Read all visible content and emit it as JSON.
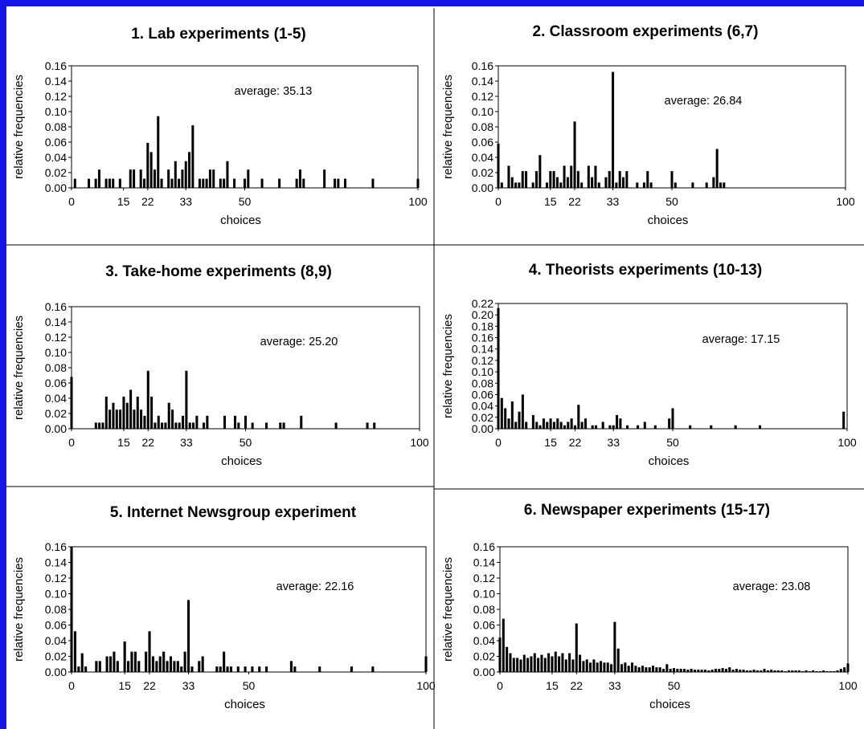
{
  "colors": {
    "frame": "#1414e6",
    "bars": "#000000",
    "background": "#ffffff"
  },
  "chart_data": [
    {
      "type": "bar",
      "title": "1. Lab experiments (1-5)",
      "xlabel": "choices",
      "ylabel": "relative frequencies",
      "average_label": "average: 35.13",
      "xlim": [
        0,
        100
      ],
      "ylim": [
        0,
        0.16
      ],
      "xticks": [
        0,
        15,
        22,
        33,
        50,
        100
      ],
      "yticks": [
        "0.00",
        "0.02",
        "0.04",
        "0.06",
        "0.08",
        "0.10",
        "0.12",
        "0.14",
        "0.16"
      ],
      "x": [
        1,
        5,
        7,
        8,
        10,
        11,
        12,
        14,
        17,
        18,
        20,
        21,
        22,
        23,
        24,
        25,
        26,
        28,
        29,
        30,
        31,
        32,
        33,
        34,
        35,
        37,
        38,
        39,
        40,
        41,
        43,
        44,
        45,
        47,
        50,
        51,
        55,
        60,
        65,
        66,
        67,
        73,
        76,
        77,
        79,
        87,
        100
      ],
      "values": [
        0.012,
        0.012,
        0.012,
        0.024,
        0.012,
        0.012,
        0.012,
        0.012,
        0.024,
        0.024,
        0.024,
        0.012,
        0.059,
        0.047,
        0.024,
        0.094,
        0.012,
        0.024,
        0.012,
        0.035,
        0.012,
        0.024,
        0.035,
        0.047,
        0.082,
        0.012,
        0.012,
        0.012,
        0.024,
        0.024,
        0.012,
        0.012,
        0.035,
        0.012,
        0.012,
        0.024,
        0.012,
        0.012,
        0.012,
        0.024,
        0.012,
        0.024,
        0.012,
        0.012,
        0.012,
        0.012,
        0.012
      ]
    },
    {
      "type": "bar",
      "title": "2. Classroom experiments (6,7)",
      "xlabel": "choices",
      "ylabel": "relative frequencies",
      "average_label": "average: 26.84",
      "xlim": [
        0,
        100
      ],
      "ylim": [
        0,
        0.16
      ],
      "xticks": [
        0,
        15,
        22,
        33,
        50,
        100
      ],
      "yticks": [
        "0.00",
        "0.02",
        "0.04",
        "0.06",
        "0.08",
        "0.10",
        "0.12",
        "0.14",
        "0.16"
      ],
      "x": [
        0,
        1,
        3,
        4,
        5,
        6,
        7,
        8,
        10,
        11,
        12,
        14,
        15,
        16,
        17,
        18,
        19,
        20,
        21,
        22,
        23,
        24,
        26,
        27,
        28,
        29,
        31,
        32,
        33,
        34,
        35,
        36,
        37,
        40,
        42,
        43,
        44,
        50,
        51,
        56,
        60,
        62,
        63,
        64,
        65
      ],
      "values": [
        0.058,
        0.007,
        0.029,
        0.014,
        0.007,
        0.007,
        0.022,
        0.022,
        0.007,
        0.022,
        0.043,
        0.007,
        0.022,
        0.022,
        0.014,
        0.007,
        0.029,
        0.014,
        0.029,
        0.087,
        0.022,
        0.007,
        0.029,
        0.014,
        0.029,
        0.007,
        0.014,
        0.022,
        0.152,
        0.007,
        0.022,
        0.014,
        0.022,
        0.007,
        0.007,
        0.022,
        0.007,
        0.022,
        0.007,
        0.007,
        0.007,
        0.014,
        0.051,
        0.007,
        0.007
      ]
    },
    {
      "type": "bar",
      "title": "3. Take-home experiments (8,9)",
      "xlabel": "choices",
      "ylabel": "relative frequencies",
      "average_label": "average: 25.20",
      "xlim": [
        0,
        100
      ],
      "ylim": [
        0,
        0.16
      ],
      "xticks": [
        0,
        15,
        22,
        33,
        50,
        100
      ],
      "yticks": [
        "0.00",
        "0.02",
        "0.04",
        "0.06",
        "0.08",
        "0.10",
        "0.12",
        "0.14",
        "0.16"
      ],
      "x": [
        0,
        7,
        8,
        9,
        10,
        11,
        12,
        13,
        14,
        15,
        16,
        17,
        18,
        19,
        20,
        21,
        22,
        23,
        24,
        25,
        26,
        27,
        28,
        29,
        30,
        31,
        32,
        33,
        34,
        35,
        36,
        38,
        39,
        44,
        47,
        48,
        50,
        52,
        56,
        60,
        61,
        66,
        76,
        85,
        87
      ],
      "values": [
        0.068,
        0.008,
        0.008,
        0.008,
        0.042,
        0.025,
        0.034,
        0.025,
        0.025,
        0.042,
        0.034,
        0.051,
        0.025,
        0.042,
        0.025,
        0.017,
        0.076,
        0.042,
        0.008,
        0.017,
        0.008,
        0.008,
        0.034,
        0.025,
        0.008,
        0.008,
        0.017,
        0.076,
        0.008,
        0.008,
        0.017,
        0.008,
        0.017,
        0.017,
        0.017,
        0.008,
        0.017,
        0.008,
        0.008,
        0.008,
        0.008,
        0.017,
        0.008,
        0.008,
        0.008
      ]
    },
    {
      "type": "bar",
      "title": "4. Theorists experiments (10-13)",
      "xlabel": "choices",
      "ylabel": "relative frequencies",
      "average_label": "average: 17.15",
      "xlim": [
        0,
        100
      ],
      "ylim": [
        0,
        0.22
      ],
      "xticks": [
        0,
        15,
        22,
        33,
        50,
        100
      ],
      "yticks": [
        "0.00",
        "0.02",
        "0.04",
        "0.06",
        "0.08",
        "0.10",
        "0.12",
        "0.14",
        "0.16",
        "0.18",
        "0.20",
        "0.22"
      ],
      "x": [
        0,
        1,
        2,
        3,
        4,
        5,
        6,
        7,
        8,
        10,
        11,
        12,
        13,
        14,
        15,
        16,
        17,
        18,
        19,
        20,
        21,
        22,
        23,
        24,
        25,
        27,
        28,
        30,
        32,
        33,
        34,
        35,
        37,
        40,
        42,
        45,
        49,
        50,
        55,
        61,
        68,
        75,
        99
      ],
      "values": [
        0.212,
        0.054,
        0.036,
        0.018,
        0.048,
        0.012,
        0.03,
        0.06,
        0.012,
        0.024,
        0.012,
        0.006,
        0.018,
        0.012,
        0.018,
        0.012,
        0.018,
        0.012,
        0.006,
        0.012,
        0.018,
        0.006,
        0.042,
        0.012,
        0.018,
        0.006,
        0.006,
        0.012,
        0.006,
        0.006,
        0.024,
        0.018,
        0.006,
        0.006,
        0.012,
        0.006,
        0.018,
        0.036,
        0.006,
        0.006,
        0.006,
        0.006,
        0.03
      ]
    },
    {
      "type": "bar",
      "title": "5. Internet Newsgroup experiment",
      "xlabel": "choices",
      "ylabel": "relative frequencies",
      "average_label": "average: 22.16",
      "xlim": [
        0,
        100
      ],
      "ylim": [
        0,
        0.16
      ],
      "xticks": [
        0,
        15,
        22,
        33,
        50,
        100
      ],
      "yticks": [
        "0.00",
        "0.02",
        "0.04",
        "0.06",
        "0.08",
        "0.10",
        "0.12",
        "0.14",
        "0.16"
      ],
      "x": [
        0,
        1,
        2,
        3,
        4,
        7,
        8,
        10,
        11,
        12,
        13,
        15,
        16,
        17,
        18,
        19,
        21,
        22,
        23,
        24,
        25,
        26,
        27,
        28,
        29,
        30,
        31,
        32,
        33,
        34,
        36,
        37,
        41,
        42,
        43,
        44,
        45,
        47,
        49,
        51,
        53,
        55,
        62,
        63,
        70,
        79,
        85,
        100
      ],
      "values": [
        0.16,
        0.052,
        0.007,
        0.024,
        0.007,
        0.014,
        0.014,
        0.02,
        0.02,
        0.026,
        0.014,
        0.039,
        0.014,
        0.026,
        0.026,
        0.014,
        0.026,
        0.052,
        0.02,
        0.014,
        0.02,
        0.026,
        0.014,
        0.02,
        0.014,
        0.014,
        0.007,
        0.026,
        0.092,
        0.007,
        0.014,
        0.02,
        0.007,
        0.007,
        0.026,
        0.007,
        0.007,
        0.007,
        0.007,
        0.007,
        0.007,
        0.007,
        0.014,
        0.007,
        0.007,
        0.007,
        0.007,
        0.02
      ]
    },
    {
      "type": "bar",
      "title": "6. Newspaper experiments (15-17)",
      "xlabel": "choices",
      "ylabel": "relative frequencies",
      "average_label": "average: 23.08",
      "xlim": [
        0,
        100
      ],
      "ylim": [
        0,
        0.16
      ],
      "xticks": [
        0,
        15,
        22,
        33,
        50,
        100
      ],
      "yticks": [
        "0.00",
        "0.02",
        "0.04",
        "0.06",
        "0.08",
        "0.10",
        "0.12",
        "0.14",
        "0.16"
      ],
      "x": [
        0,
        1,
        2,
        3,
        4,
        5,
        6,
        7,
        8,
        9,
        10,
        11,
        12,
        13,
        14,
        15,
        16,
        17,
        18,
        19,
        20,
        21,
        22,
        23,
        24,
        25,
        26,
        27,
        28,
        29,
        30,
        31,
        32,
        33,
        34,
        35,
        36,
        37,
        38,
        39,
        40,
        41,
        42,
        43,
        44,
        45,
        46,
        47,
        48,
        49,
        50,
        51,
        52,
        53,
        54,
        55,
        56,
        57,
        58,
        59,
        60,
        61,
        62,
        63,
        64,
        65,
        66,
        67,
        68,
        69,
        70,
        71,
        72,
        73,
        74,
        75,
        76,
        77,
        78,
        79,
        80,
        81,
        82,
        83,
        84,
        85,
        86,
        87,
        88,
        89,
        90,
        91,
        92,
        93,
        94,
        95,
        96,
        97,
        98,
        99,
        100
      ],
      "values": [
        0.044,
        0.068,
        0.032,
        0.024,
        0.018,
        0.018,
        0.016,
        0.022,
        0.018,
        0.02,
        0.024,
        0.018,
        0.022,
        0.018,
        0.024,
        0.02,
        0.026,
        0.02,
        0.024,
        0.016,
        0.024,
        0.016,
        0.062,
        0.022,
        0.014,
        0.016,
        0.012,
        0.016,
        0.012,
        0.014,
        0.012,
        0.012,
        0.01,
        0.064,
        0.03,
        0.01,
        0.012,
        0.008,
        0.012,
        0.008,
        0.006,
        0.008,
        0.006,
        0.006,
        0.008,
        0.006,
        0.006,
        0.004,
        0.01,
        0.004,
        0.005,
        0.004,
        0.004,
        0.004,
        0.003,
        0.004,
        0.003,
        0.003,
        0.003,
        0.003,
        0.002,
        0.003,
        0.004,
        0.004,
        0.005,
        0.004,
        0.006,
        0.003,
        0.004,
        0.003,
        0.003,
        0.002,
        0.002,
        0.003,
        0.002,
        0.002,
        0.004,
        0.002,
        0.003,
        0.002,
        0.002,
        0.002,
        0.001,
        0.002,
        0.002,
        0.002,
        0.002,
        0.001,
        0.002,
        0.001,
        0.002,
        0.001,
        0.001,
        0.002,
        0.001,
        0.001,
        0.001,
        0.002,
        0.004,
        0.006,
        0.011
      ]
    }
  ]
}
